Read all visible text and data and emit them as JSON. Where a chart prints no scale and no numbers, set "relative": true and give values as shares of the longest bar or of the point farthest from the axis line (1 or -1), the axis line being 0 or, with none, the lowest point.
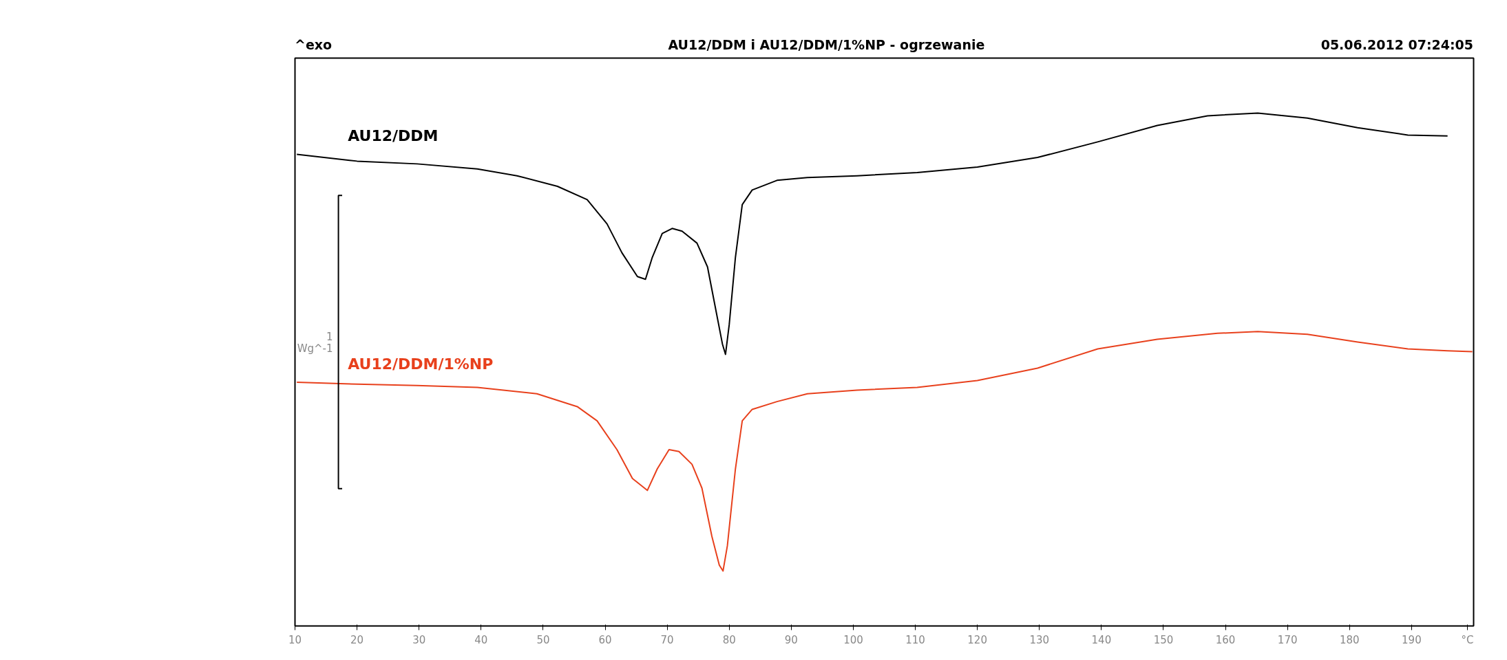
{
  "chart_data": {
    "type": "line",
    "title": "AU12/DDM i AU12/DDM/1%NP - ogrzewanie",
    "relative": true,
    "annotations": [
      "^exo",
      "05.06.2012 07:24:05",
      "1\nWg^-1"
    ],
    "xlim": [
      10,
      200
    ],
    "xticks": [
      10,
      20,
      30,
      40,
      50,
      60,
      70,
      80,
      90,
      100,
      110,
      120,
      130,
      140,
      150,
      160,
      170,
      180,
      190,
      {
        "value": 199,
        "label": "°C"
      }
    ],
    "tick_labels": "x",
    "grid": false,
    "marker": "none",
    "line_style": "solid",
    "series": [
      {
        "name": "AU12/DDM",
        "color": "#000000",
        "x": [
          10.3,
          20,
          29.7,
          39.4,
          45.8,
          52.3,
          57.1,
          60.3,
          62.7,
          65.2,
          66.5,
          67.6,
          69.2,
          70.8,
          72.4,
          74.8,
          76.5,
          77.7,
          78.9,
          79.4,
          80,
          81,
          82.1,
          83.7,
          87.7,
          92.6,
          100.6,
          110.3,
          120,
          129.7,
          139.4,
          149,
          157.1,
          165.2,
          173.2,
          181.3,
          189.4,
          195.8
        ],
        "values": [
          0.91,
          0.895,
          0.889,
          0.878,
          0.863,
          0.84,
          0.811,
          0.758,
          0.695,
          0.643,
          0.637,
          0.685,
          0.737,
          0.748,
          0.742,
          0.716,
          0.664,
          0.58,
          0.496,
          0.473,
          0.538,
          0.685,
          0.8,
          0.832,
          0.853,
          0.859,
          0.863,
          0.87,
          0.882,
          0.903,
          0.937,
          0.973,
          0.994,
          1,
          0.989,
          0.968,
          0.952,
          0.95
        ]
      },
      {
        "name": "AU12/DDM/1%NP",
        "color": "#e8401c",
        "x": [
          10.3,
          20,
          29.7,
          39.4,
          49,
          55.5,
          58.7,
          61.9,
          64.4,
          66.8,
          68.4,
          70.3,
          71.9,
          74,
          75.6,
          77.2,
          78.4,
          79,
          79.7,
          81,
          82.1,
          83.7,
          87.7,
          92.6,
          100.6,
          110.3,
          120,
          129.7,
          139.4,
          149,
          158.7,
          165.2,
          173.2,
          181.3,
          189.4,
          195.8,
          199.8
        ],
        "values": [
          0.412,
          0.408,
          0.405,
          0.401,
          0.387,
          0.359,
          0.328,
          0.265,
          0.202,
          0.176,
          0.223,
          0.265,
          0.261,
          0.233,
          0.181,
          0.076,
          0.013,
          0,
          0.055,
          0.223,
          0.328,
          0.353,
          0.37,
          0.387,
          0.395,
          0.401,
          0.416,
          0.443,
          0.485,
          0.506,
          0.519,
          0.523,
          0.517,
          0.5,
          0.485,
          0.481,
          0.479
        ]
      }
    ]
  }
}
